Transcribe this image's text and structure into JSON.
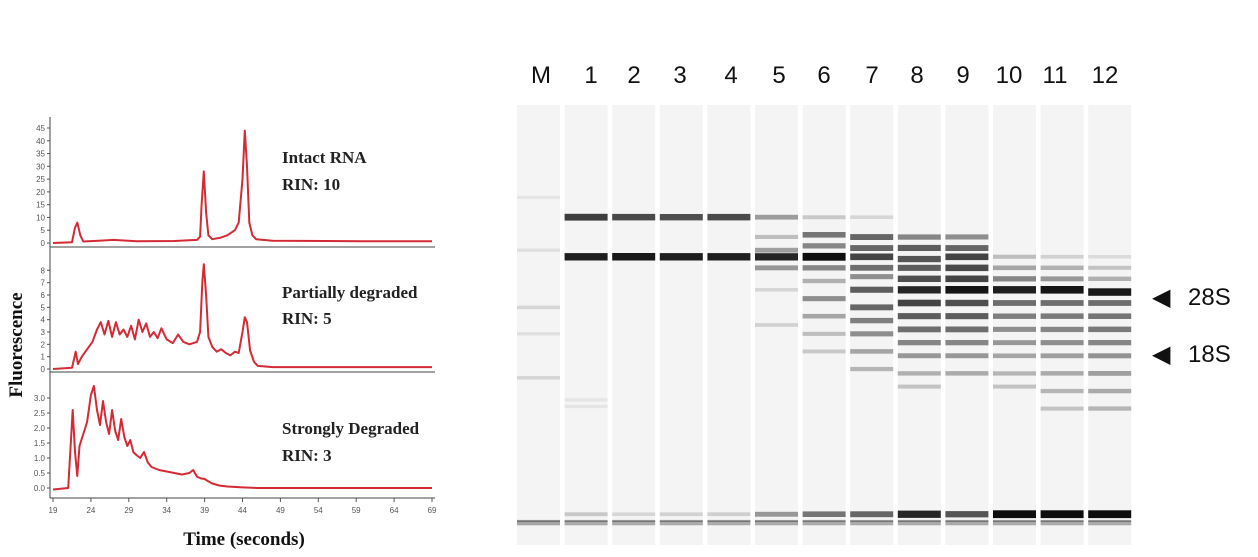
{
  "chart_data": [
    {
      "type": "line",
      "xlabel": "Time (seconds)",
      "ylabel": "Fluorescence",
      "x_ticks": [
        "19",
        "24",
        "29",
        "34",
        "39",
        "44",
        "49",
        "54",
        "59",
        "64",
        "69"
      ],
      "xlim": [
        19,
        69
      ],
      "color": "#d42a35",
      "panels": [
        {
          "annotation": [
            "Intact RNA",
            "RIN: 10"
          ],
          "yticks": [
            "0",
            "5",
            "10",
            "15",
            "20",
            "25",
            "30",
            "35",
            "40",
            "45"
          ],
          "ylim": [
            0,
            45
          ],
          "x": [
            19,
            21.5,
            21.9,
            22.2,
            22.6,
            23,
            25,
            27,
            30,
            35,
            38,
            38.4,
            38.6,
            38.9,
            39.2,
            39.5,
            40,
            41,
            42,
            43,
            43.5,
            44,
            44.3,
            44.6,
            44.9,
            45.3,
            45.8,
            48,
            55,
            60,
            69
          ],
          "y": [
            0,
            0.3,
            6,
            8,
            3,
            0.6,
            0.9,
            1.2,
            0.7,
            0.8,
            1.2,
            2.5,
            15,
            28,
            12,
            3,
            1.5,
            2,
            3,
            5,
            8,
            25,
            44,
            30,
            8,
            3,
            1.5,
            0.9,
            0.8,
            0.7,
            0.7
          ]
        },
        {
          "annotation": [
            "Partially degraded",
            "RIN: 5"
          ],
          "yticks": [
            "0",
            "1",
            "2",
            "3",
            "4",
            "5",
            "6",
            "7",
            "8"
          ],
          "ylim": [
            0,
            9
          ],
          "x": [
            19,
            21.5,
            22,
            22.3,
            22.8,
            23.5,
            24.2,
            24.8,
            25.3,
            25.8,
            26.3,
            26.8,
            27.3,
            27.8,
            28.3,
            28.8,
            29.3,
            29.8,
            30.3,
            30.8,
            31.3,
            31.8,
            32.3,
            32.8,
            33.3,
            34,
            34.8,
            35.5,
            36.2,
            37,
            38,
            38.4,
            38.7,
            38.9,
            39.2,
            39.5,
            40,
            40.6,
            41.2,
            41.8,
            42.4,
            43,
            43.5,
            44,
            44.3,
            44.6,
            45,
            45.5,
            46,
            48,
            55,
            60,
            69
          ],
          "y": [
            0,
            0.1,
            1.4,
            0.4,
            1,
            1.6,
            2.2,
            3.2,
            3.8,
            2.8,
            3.9,
            2.6,
            3.8,
            2.8,
            3.2,
            2.6,
            3.5,
            2.4,
            4,
            3,
            3.7,
            2.6,
            3,
            2.5,
            3.3,
            2.4,
            2.1,
            2.8,
            2.2,
            2,
            2.2,
            3,
            7,
            8.5,
            6,
            2.6,
            1.8,
            1.4,
            1.6,
            1.3,
            1.1,
            1.4,
            1.3,
            3,
            4.2,
            3.8,
            1.5,
            0.6,
            0.25,
            0.15,
            0.15,
            0.15,
            0.15
          ]
        },
        {
          "annotation": [
            "Strongly Degraded",
            "RIN: 3"
          ],
          "yticks": [
            "0.0",
            "0.5",
            "1.0",
            "1.5",
            "2.0",
            "2.5",
            "3.0"
          ],
          "ylim": [
            -0.2,
            3.5
          ],
          "x": [
            19,
            21,
            21.6,
            21.9,
            22.2,
            22.5,
            23,
            23.5,
            24,
            24.4,
            24.8,
            25.2,
            25.6,
            26,
            26.4,
            26.8,
            27.2,
            27.6,
            28,
            28.4,
            28.8,
            29.2,
            29.6,
            30,
            30.5,
            31,
            31.5,
            32,
            33,
            34,
            35,
            36,
            37,
            37.5,
            38,
            38.5,
            39,
            39.5,
            40,
            41,
            42,
            44,
            46,
            55,
            69
          ],
          "y": [
            -0.05,
            0,
            2.6,
            1.2,
            0.4,
            1.4,
            1.8,
            2.2,
            3.1,
            3.4,
            2.6,
            2.1,
            2.9,
            2.2,
            1.8,
            2.6,
            1.9,
            1.6,
            2.3,
            1.7,
            1.4,
            1.6,
            1.2,
            1.1,
            1,
            1.2,
            0.85,
            0.7,
            0.6,
            0.55,
            0.5,
            0.45,
            0.5,
            0.6,
            0.38,
            0.32,
            0.3,
            0.22,
            0.15,
            0.08,
            0.05,
            0.02,
            0,
            0,
            0
          ]
        }
      ]
    },
    {
      "type": "heatmap",
      "lanes": [
        "M",
        "1",
        "2",
        "3",
        "4",
        "5",
        "6",
        "7",
        "8",
        "9",
        "10",
        "11",
        "12"
      ],
      "markers": [
        {
          "symbol": "◀",
          "label": "28S",
          "band_position": 0.255
        },
        {
          "symbol": "◀",
          "label": "18S",
          "band_position": 0.345
        }
      ],
      "bands": [
        [
          [
            0.21,
            0.06
          ],
          [
            0.33,
            0.08
          ],
          [
            0.46,
            0.12
          ],
          [
            0.52,
            0.08
          ],
          [
            0.62,
            0.12
          ],
          [
            0.95,
            0.32
          ]
        ],
        [
          [
            0.255,
            0.75
          ],
          [
            0.345,
            0.88
          ],
          [
            0.67,
            0.06
          ],
          [
            0.685,
            0.06
          ],
          [
            0.93,
            0.18
          ],
          [
            0.95,
            0.3
          ]
        ],
        [
          [
            0.255,
            0.7
          ],
          [
            0.345,
            0.9
          ],
          [
            0.93,
            0.12
          ],
          [
            0.95,
            0.3
          ]
        ],
        [
          [
            0.255,
            0.68
          ],
          [
            0.345,
            0.88
          ],
          [
            0.93,
            0.14
          ],
          [
            0.95,
            0.3
          ]
        ],
        [
          [
            0.255,
            0.7
          ],
          [
            0.345,
            0.88
          ],
          [
            0.93,
            0.15
          ],
          [
            0.95,
            0.3
          ]
        ],
        [
          [
            0.255,
            0.36
          ],
          [
            0.3,
            0.22
          ],
          [
            0.33,
            0.35
          ],
          [
            0.345,
            0.85
          ],
          [
            0.37,
            0.38
          ],
          [
            0.42,
            0.12
          ],
          [
            0.5,
            0.14
          ],
          [
            0.93,
            0.38
          ],
          [
            0.95,
            0.3
          ]
        ],
        [
          [
            0.255,
            0.18
          ],
          [
            0.295,
            0.52
          ],
          [
            0.32,
            0.45
          ],
          [
            0.345,
            0.95
          ],
          [
            0.37,
            0.45
          ],
          [
            0.4,
            0.28
          ],
          [
            0.44,
            0.42
          ],
          [
            0.48,
            0.32
          ],
          [
            0.52,
            0.22
          ],
          [
            0.56,
            0.18
          ],
          [
            0.93,
            0.52
          ],
          [
            0.95,
            0.3
          ]
        ],
        [
          [
            0.255,
            0.12
          ],
          [
            0.3,
            0.58
          ],
          [
            0.325,
            0.58
          ],
          [
            0.345,
            0.72
          ],
          [
            0.37,
            0.55
          ],
          [
            0.39,
            0.42
          ],
          [
            0.42,
            0.62
          ],
          [
            0.46,
            0.58
          ],
          [
            0.49,
            0.48
          ],
          [
            0.52,
            0.42
          ],
          [
            0.56,
            0.32
          ],
          [
            0.6,
            0.26
          ],
          [
            0.93,
            0.58
          ],
          [
            0.95,
            0.3
          ]
        ],
        [
          [
            0.3,
            0.45
          ],
          [
            0.325,
            0.62
          ],
          [
            0.35,
            0.65
          ],
          [
            0.37,
            0.62
          ],
          [
            0.395,
            0.68
          ],
          [
            0.42,
            0.85
          ],
          [
            0.45,
            0.72
          ],
          [
            0.48,
            0.62
          ],
          [
            0.51,
            0.55
          ],
          [
            0.54,
            0.45
          ],
          [
            0.57,
            0.38
          ],
          [
            0.61,
            0.28
          ],
          [
            0.64,
            0.2
          ],
          [
            0.93,
            0.85
          ],
          [
            0.95,
            0.3
          ]
        ],
        [
          [
            0.3,
            0.42
          ],
          [
            0.325,
            0.58
          ],
          [
            0.345,
            0.72
          ],
          [
            0.37,
            0.7
          ],
          [
            0.395,
            0.72
          ],
          [
            0.42,
            0.92
          ],
          [
            0.45,
            0.68
          ],
          [
            0.48,
            0.62
          ],
          [
            0.51,
            0.55
          ],
          [
            0.54,
            0.45
          ],
          [
            0.57,
            0.38
          ],
          [
            0.61,
            0.3
          ],
          [
            0.93,
            0.65
          ],
          [
            0.95,
            0.3
          ]
        ],
        [
          [
            0.345,
            0.22
          ],
          [
            0.37,
            0.32
          ],
          [
            0.395,
            0.45
          ],
          [
            0.42,
            0.88
          ],
          [
            0.45,
            0.55
          ],
          [
            0.48,
            0.48
          ],
          [
            0.51,
            0.42
          ],
          [
            0.54,
            0.38
          ],
          [
            0.57,
            0.32
          ],
          [
            0.61,
            0.26
          ],
          [
            0.64,
            0.2
          ],
          [
            0.93,
            0.95
          ],
          [
            0.95,
            0.3
          ]
        ],
        [
          [
            0.345,
            0.14
          ],
          [
            0.37,
            0.28
          ],
          [
            0.395,
            0.38
          ],
          [
            0.42,
            0.92
          ],
          [
            0.45,
            0.55
          ],
          [
            0.48,
            0.5
          ],
          [
            0.51,
            0.45
          ],
          [
            0.54,
            0.42
          ],
          [
            0.57,
            0.35
          ],
          [
            0.61,
            0.3
          ],
          [
            0.65,
            0.26
          ],
          [
            0.69,
            0.2
          ],
          [
            0.93,
            0.95
          ],
          [
            0.95,
            0.3
          ]
        ],
        [
          [
            0.345,
            0.1
          ],
          [
            0.37,
            0.2
          ],
          [
            0.395,
            0.28
          ],
          [
            0.425,
            0.9
          ],
          [
            0.45,
            0.55
          ],
          [
            0.48,
            0.52
          ],
          [
            0.51,
            0.5
          ],
          [
            0.54,
            0.45
          ],
          [
            0.57,
            0.4
          ],
          [
            0.61,
            0.35
          ],
          [
            0.65,
            0.3
          ],
          [
            0.69,
            0.26
          ],
          [
            0.93,
            0.95
          ],
          [
            0.95,
            0.3
          ]
        ]
      ]
    }
  ]
}
